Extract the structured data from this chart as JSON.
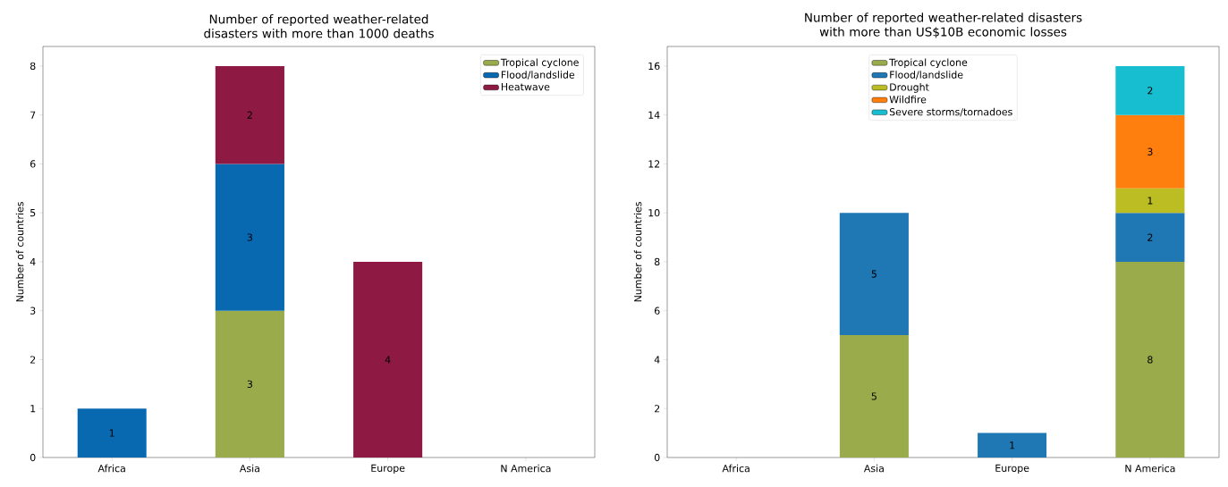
{
  "chart_data": [
    {
      "type": "bar",
      "stacked": true,
      "title": "Number of reported weather-related disasters with more than 1000 deaths",
      "ylabel": "Number of countries",
      "categories": [
        "Africa",
        "Asia",
        "Europe",
        "N America"
      ],
      "series": [
        {
          "name": "Tropical cyclone",
          "color": "#9aab4c",
          "values": [
            null,
            3,
            null,
            null
          ]
        },
        {
          "name": "Flood/landslide",
          "color": "#0868b0",
          "values": [
            1,
            3,
            null,
            null
          ]
        },
        {
          "name": "Heatwave",
          "color": "#8e1a44",
          "values": [
            null,
            2,
            4,
            null
          ]
        }
      ],
      "ylim": [
        0,
        8.4
      ],
      "yticks": [
        0,
        1,
        2,
        3,
        4,
        5,
        6,
        7,
        8
      ],
      "data_labels": true,
      "legend": "top right"
    },
    {
      "type": "bar",
      "stacked": true,
      "title": "Number of reported weather-related disasters with more than US$10B economic losses",
      "ylabel": "Number of countries",
      "categories": [
        "Africa",
        "Asia",
        "Europe",
        "N America"
      ],
      "series": [
        {
          "name": "Tropical cyclone",
          "color": "#9aab4c",
          "values": [
            null,
            5,
            null,
            8
          ]
        },
        {
          "name": "Flood/landslide",
          "color": "#1f77b4",
          "values": [
            null,
            5,
            1,
            2
          ]
        },
        {
          "name": "Drought",
          "color": "#bcbd22",
          "values": [
            null,
            null,
            null,
            1
          ]
        },
        {
          "name": "Wildfire",
          "color": "#ff7f0e",
          "values": [
            null,
            null,
            null,
            3
          ]
        },
        {
          "name": "Severe storms/tornadoes",
          "color": "#17becf",
          "values": [
            null,
            null,
            null,
            2
          ]
        }
      ],
      "ylim": [
        0,
        16.8
      ],
      "yticks": [
        0,
        2,
        4,
        6,
        8,
        10,
        12,
        14,
        16
      ],
      "data_labels": true,
      "legend": "top"
    }
  ]
}
